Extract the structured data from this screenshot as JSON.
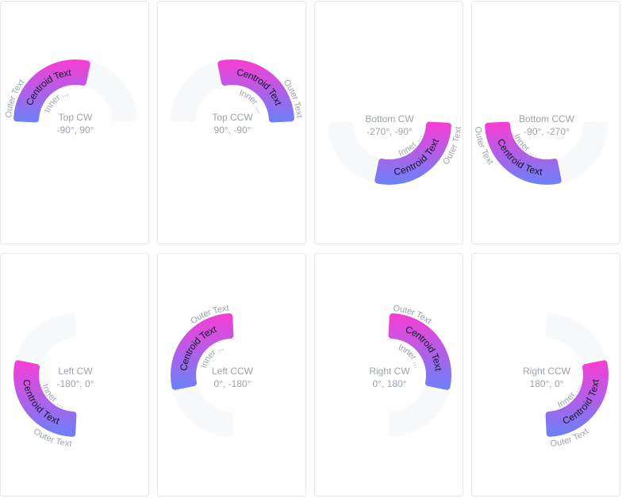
{
  "colors": {
    "track": "#f8f9fb",
    "gradient_top": "#f43fd6",
    "gradient_bottom": "#6f7ff7",
    "label": "#9ca3af",
    "border": "#e5e7eb"
  },
  "cards": [
    {
      "title": "Top CW",
      "subtitle": "-90°, 90°",
      "start": -90,
      "end": 90,
      "value": 0.58,
      "centroid": "Centroid Text",
      "outer": "Outer Text",
      "inner": "Inner ..."
    },
    {
      "title": "Top CCW",
      "subtitle": "90°, -90°",
      "start": 90,
      "end": -90,
      "value": 0.58,
      "centroid": "Centroid Text",
      "outer": "Outer Text",
      "inner": "Inner ..."
    },
    {
      "title": "Bottom CW",
      "subtitle": "-270°, -90°",
      "start": -270,
      "end": -90,
      "value": 0.58,
      "centroid": "Centroid Text",
      "outer": "Outer Text",
      "inner": "Inner ..."
    },
    {
      "title": "Bottom CCW",
      "subtitle": "-90°, -270°",
      "start": -90,
      "end": -270,
      "value": 0.58,
      "centroid": "Centroid Text",
      "outer": "Outer Text",
      "inner": "Inner ..."
    },
    {
      "title": "Left CW",
      "subtitle": "-180°, 0°",
      "start": -180,
      "end": 0,
      "value": 0.58,
      "centroid": "Centroid Text",
      "outer": "Outer Text",
      "inner": "Inner ..."
    },
    {
      "title": "Left CCW",
      "subtitle": "0°, -180°",
      "start": 0,
      "end": -180,
      "value": 0.58,
      "centroid": "Centroid Text",
      "outer": "Outer Text",
      "inner": "Inner ..."
    },
    {
      "title": "Right CW",
      "subtitle": "0°, 180°",
      "start": 0,
      "end": 180,
      "value": 0.58,
      "centroid": "Centroid Text",
      "outer": "Outer Text",
      "inner": "Inner ..."
    },
    {
      "title": "Right CCW",
      "subtitle": "180°, 0°",
      "start": 180,
      "end": 0,
      "value": 0.58,
      "centroid": "Centroid Text",
      "outer": "Outer Text",
      "inner": "Inner ..."
    }
  ]
}
